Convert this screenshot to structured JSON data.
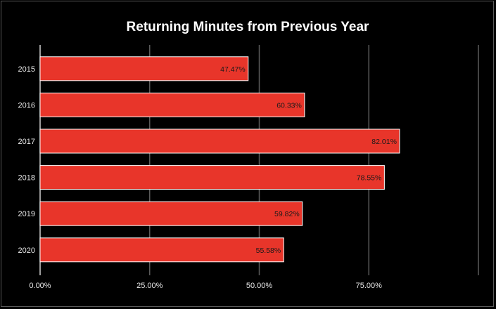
{
  "chart_data": {
    "type": "bar",
    "orientation": "horizontal",
    "title": "Returning Minutes from Previous Year",
    "xlabel": "",
    "ylabel": "",
    "categories": [
      "2015",
      "2016",
      "2017",
      "2018",
      "2019",
      "2020"
    ],
    "values": [
      47.47,
      60.33,
      82.01,
      78.55,
      59.82,
      55.58
    ],
    "data_labels": [
      "47.47%",
      "60.33%",
      "82.01%",
      "78.55%",
      "59.82%",
      "55.58%"
    ],
    "x_ticks": [
      0,
      25,
      50,
      75
    ],
    "x_tick_labels": [
      "0.00%",
      "25.00%",
      "50.00%",
      "75.00%"
    ],
    "xlim": [
      0,
      100
    ],
    "grid": "vertical",
    "legend": "none",
    "colors": {
      "background": "#000000",
      "bar": "#e8352a",
      "bar_border": "#ffffff",
      "grid": "#5a5a5a",
      "text": "#ffffff",
      "label": "#1a1a1a"
    }
  }
}
